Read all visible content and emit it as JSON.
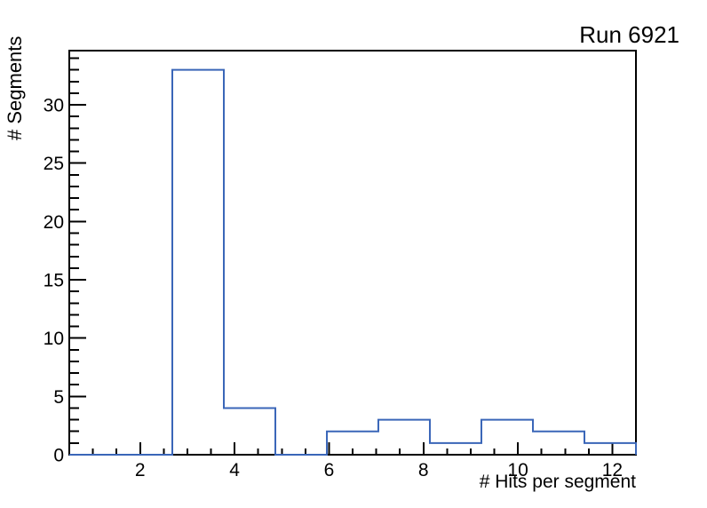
{
  "window": {
    "background_color": "#ffffff"
  },
  "chart_data": {
    "type": "bar",
    "style": "step-histogram-outline",
    "title": "Run 6921",
    "xlabel": "# Hits per segment",
    "ylabel": "# Segments",
    "xlim": [
      0.5,
      12.5
    ],
    "ylim": [
      0,
      34.65
    ],
    "grid": false,
    "legend": false,
    "line_color": "#3a66b8",
    "axis_color": "#000000",
    "n_bins": 11,
    "bin_width": 1.091,
    "bin_edges": [
      0.5,
      1.591,
      2.682,
      3.773,
      4.864,
      5.955,
      7.045,
      8.136,
      9.227,
      10.318,
      11.409,
      12.5
    ],
    "counts": [
      0,
      0,
      33,
      4,
      0,
      2,
      3,
      1,
      3,
      2,
      1
    ],
    "x_major_ticks": [
      2,
      4,
      6,
      8,
      10,
      12
    ],
    "x_tick_labels": [
      "2",
      "4",
      "6",
      "8",
      "10",
      "12"
    ],
    "x_minor_step": 0.5,
    "y_major_ticks": [
      0,
      5,
      10,
      15,
      20,
      25,
      30
    ],
    "y_tick_labels": [
      "0",
      "5",
      "10",
      "15",
      "20",
      "25",
      "30"
    ],
    "y_minor_step": 1
  }
}
